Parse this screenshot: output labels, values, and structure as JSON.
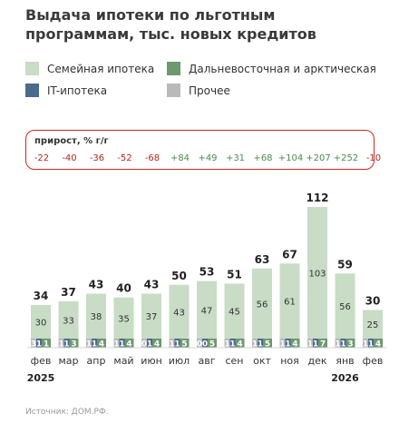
{
  "title": "Выдача ипотеки по льготным программам, тыс. новых кредитов",
  "source": "Источник: ДОМ.РФ.",
  "growth_title": "прирост, % г/г",
  "colors": {
    "family": "#c8dcc6",
    "fareast": "#6e9870",
    "it": "#4a6b8c",
    "other": "#b9b9b9",
    "negative": "#b0281e",
    "positive": "#4e8a4f",
    "border": "#c8282d"
  },
  "chart_data": {
    "type": "bar",
    "stacked": true,
    "title": "Выдача ипотеки по льготным программам, тыс. новых кредитов",
    "categories": [
      "фев",
      "мар",
      "апр",
      "май",
      "июн",
      "июл",
      "авг",
      "сен",
      "окт",
      "ноя",
      "дек",
      "янв",
      "фев"
    ],
    "years": [
      {
        "label": "2025",
        "category_index": 0
      },
      {
        "label": "2026",
        "category_index": 11
      }
    ],
    "series": [
      {
        "name": "Прочее",
        "key": "other",
        "values": [
          3,
          1,
          1,
          1,
          0,
          1,
          0,
          1,
          1,
          1,
          1,
          1,
          1
        ]
      },
      {
        "name": "IT-ипотека",
        "key": "it",
        "values": [
          1,
          1,
          1,
          1,
          1,
          1,
          0,
          1,
          1,
          1,
          1,
          1,
          1
        ]
      },
      {
        "name": "Дальневосточная и арктическая",
        "key": "fareast",
        "values": [
          1,
          3,
          4,
          4,
          4,
          5,
          5,
          4,
          5,
          4,
          7,
          3,
          4
        ]
      },
      {
        "name": "Семейная ипотека",
        "key": "family",
        "values": [
          30,
          33,
          38,
          35,
          37,
          43,
          47,
          45,
          56,
          61,
          103,
          56,
          25
        ]
      }
    ],
    "totals": [
      34,
      37,
      43,
      40,
      43,
      50,
      53,
      51,
      63,
      67,
      112,
      59,
      30
    ],
    "growth_yoy_percent": [
      "-22",
      "-40",
      "-36",
      "-52",
      "-68",
      "+84",
      "+49",
      "+31",
      "+68",
      "+104",
      "+207",
      "+252",
      "-10"
    ],
    "ylim": [
      0,
      112
    ],
    "grid": false
  },
  "legend": [
    {
      "key": "family",
      "label": "Семейная ипотека"
    },
    {
      "key": "fareast",
      "label": "Дальневосточная и арктическая"
    },
    {
      "key": "it",
      "label": "IT-ипотека"
    },
    {
      "key": "other",
      "label": "Прочее"
    }
  ]
}
